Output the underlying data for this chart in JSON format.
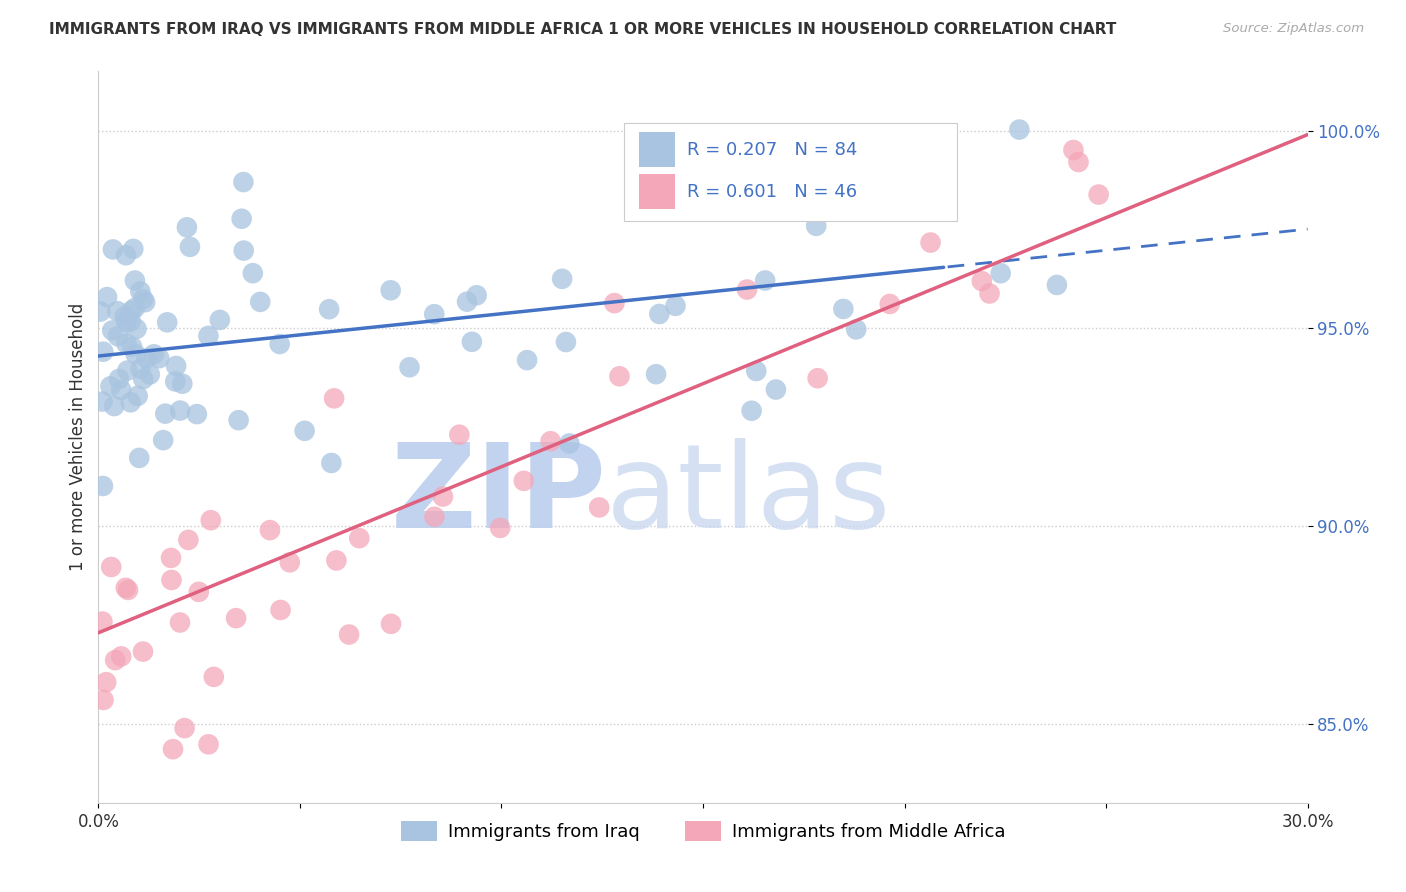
{
  "title": "IMMIGRANTS FROM IRAQ VS IMMIGRANTS FROM MIDDLE AFRICA 1 OR MORE VEHICLES IN HOUSEHOLD CORRELATION CHART",
  "source": "Source: ZipAtlas.com",
  "ylabel": "1 or more Vehicles in Household",
  "xlim": [
    0.0,
    30.0
  ],
  "ylim": [
    83.0,
    101.5
  ],
  "y_ticks": [
    85.0,
    90.0,
    95.0,
    100.0
  ],
  "y_tick_labels": [
    "85.0%",
    "90.0%",
    "95.0%",
    "100.0%"
  ],
  "x_tick_labels": [
    "0.0%",
    "",
    "",
    "",
    "",
    "",
    "30.0%"
  ],
  "legend_iraq_R": "0.207",
  "legend_iraq_N": "84",
  "legend_africa_R": "0.601",
  "legend_africa_N": "46",
  "iraq_color": "#a8c4e0",
  "africa_color": "#f4a7b9",
  "iraq_line_color": "#4472c4",
  "africa_line_color": "#e06080",
  "tick_color": "#4472c4",
  "watermark_zip": "ZIP",
  "watermark_atlas": "atlas",
  "watermark_color": "#c8d8f0",
  "background_color": "#ffffff",
  "grid_color": "#cccccc",
  "title_color": "#333333",
  "source_color": "#aaaaaa",
  "ylabel_color": "#333333"
}
